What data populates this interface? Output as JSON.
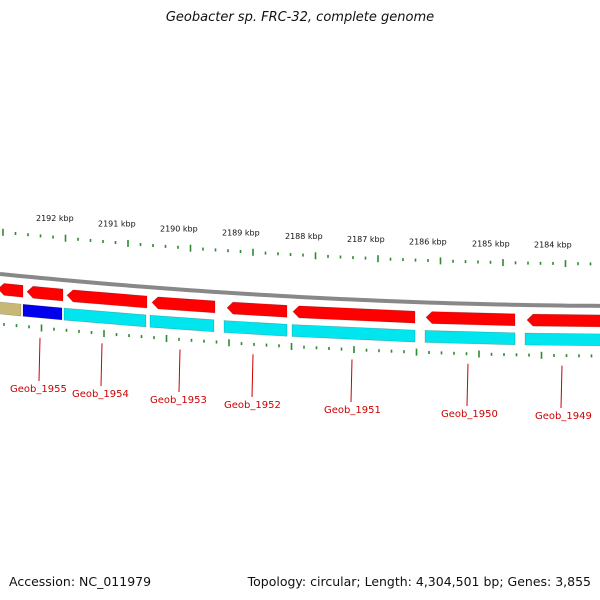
{
  "title": "Geobacter sp. FRC-32, complete genome",
  "footer": {
    "accession": "Accession: NC_011979",
    "summary": "Topology: circular; Length: 4,304,501 bp; Genes: 3,855"
  },
  "colors": {
    "forward_strand": "#ff0000",
    "reverse_strand": "#00e5ee",
    "rna_feature": "#0000ee",
    "other_feature": "#c8b878",
    "ticks": "#2e8b2e",
    "gene_label": "#cc0000",
    "backbone": "#888888"
  },
  "scale_labels": [
    "2192 kbp",
    "2191 kbp",
    "2190 kbp",
    "2189 kbp",
    "2188 kbp",
    "2187 kbp",
    "2186 kbp",
    "2185 kbp",
    "2184 kbp"
  ],
  "gene_labels": [
    "Geob_1955",
    "Geob_1954",
    "Geob_1953",
    "Geob_1952",
    "Geob_1951",
    "Geob_1950",
    "Geob_1949"
  ]
}
